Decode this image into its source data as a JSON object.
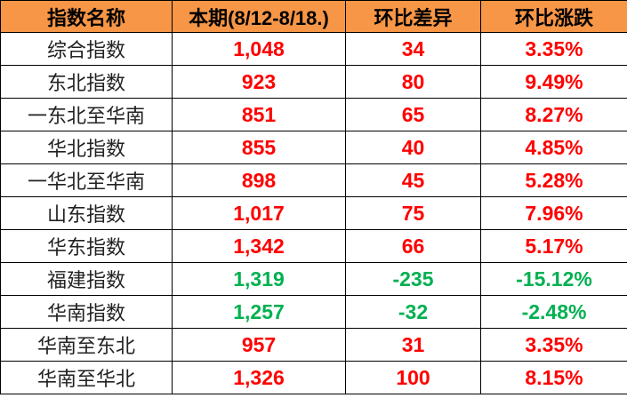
{
  "colors": {
    "header_bg": "#F79646",
    "up": "#FF0000",
    "down": "#00B050"
  },
  "headers": [
    "指数名称",
    "本期(8/12-8/18.)",
    "环比差异",
    "环比涨跌"
  ],
  "rows": [
    {
      "name": "综合指数",
      "current": "1,048",
      "diff": "34",
      "pct": "3.35%",
      "trend": "up"
    },
    {
      "name": "东北指数",
      "current": "923",
      "diff": "80",
      "pct": "9.49%",
      "trend": "up"
    },
    {
      "name": "一东北至华南",
      "current": "851",
      "diff": "65",
      "pct": "8.27%",
      "trend": "up"
    },
    {
      "name": "华北指数",
      "current": "855",
      "diff": "40",
      "pct": "4.85%",
      "trend": "up"
    },
    {
      "name": "一华北至华南",
      "current": "898",
      "diff": "45",
      "pct": "5.28%",
      "trend": "up"
    },
    {
      "name": "山东指数",
      "current": "1,017",
      "diff": "75",
      "pct": "7.96%",
      "trend": "up"
    },
    {
      "name": "华东指数",
      "current": "1,342",
      "diff": "66",
      "pct": "5.17%",
      "trend": "up"
    },
    {
      "name": "福建指数",
      "current": "1,319",
      "diff": "-235",
      "pct": "-15.12%",
      "trend": "down"
    },
    {
      "name": "华南指数",
      "current": "1,257",
      "diff": "-32",
      "pct": "-2.48%",
      "trend": "down"
    },
    {
      "name": "华南至东北",
      "current": "957",
      "diff": "31",
      "pct": "3.35%",
      "trend": "up"
    },
    {
      "name": "华南至华北",
      "current": "1,326",
      "diff": "100",
      "pct": "8.15%",
      "trend": "up"
    }
  ]
}
